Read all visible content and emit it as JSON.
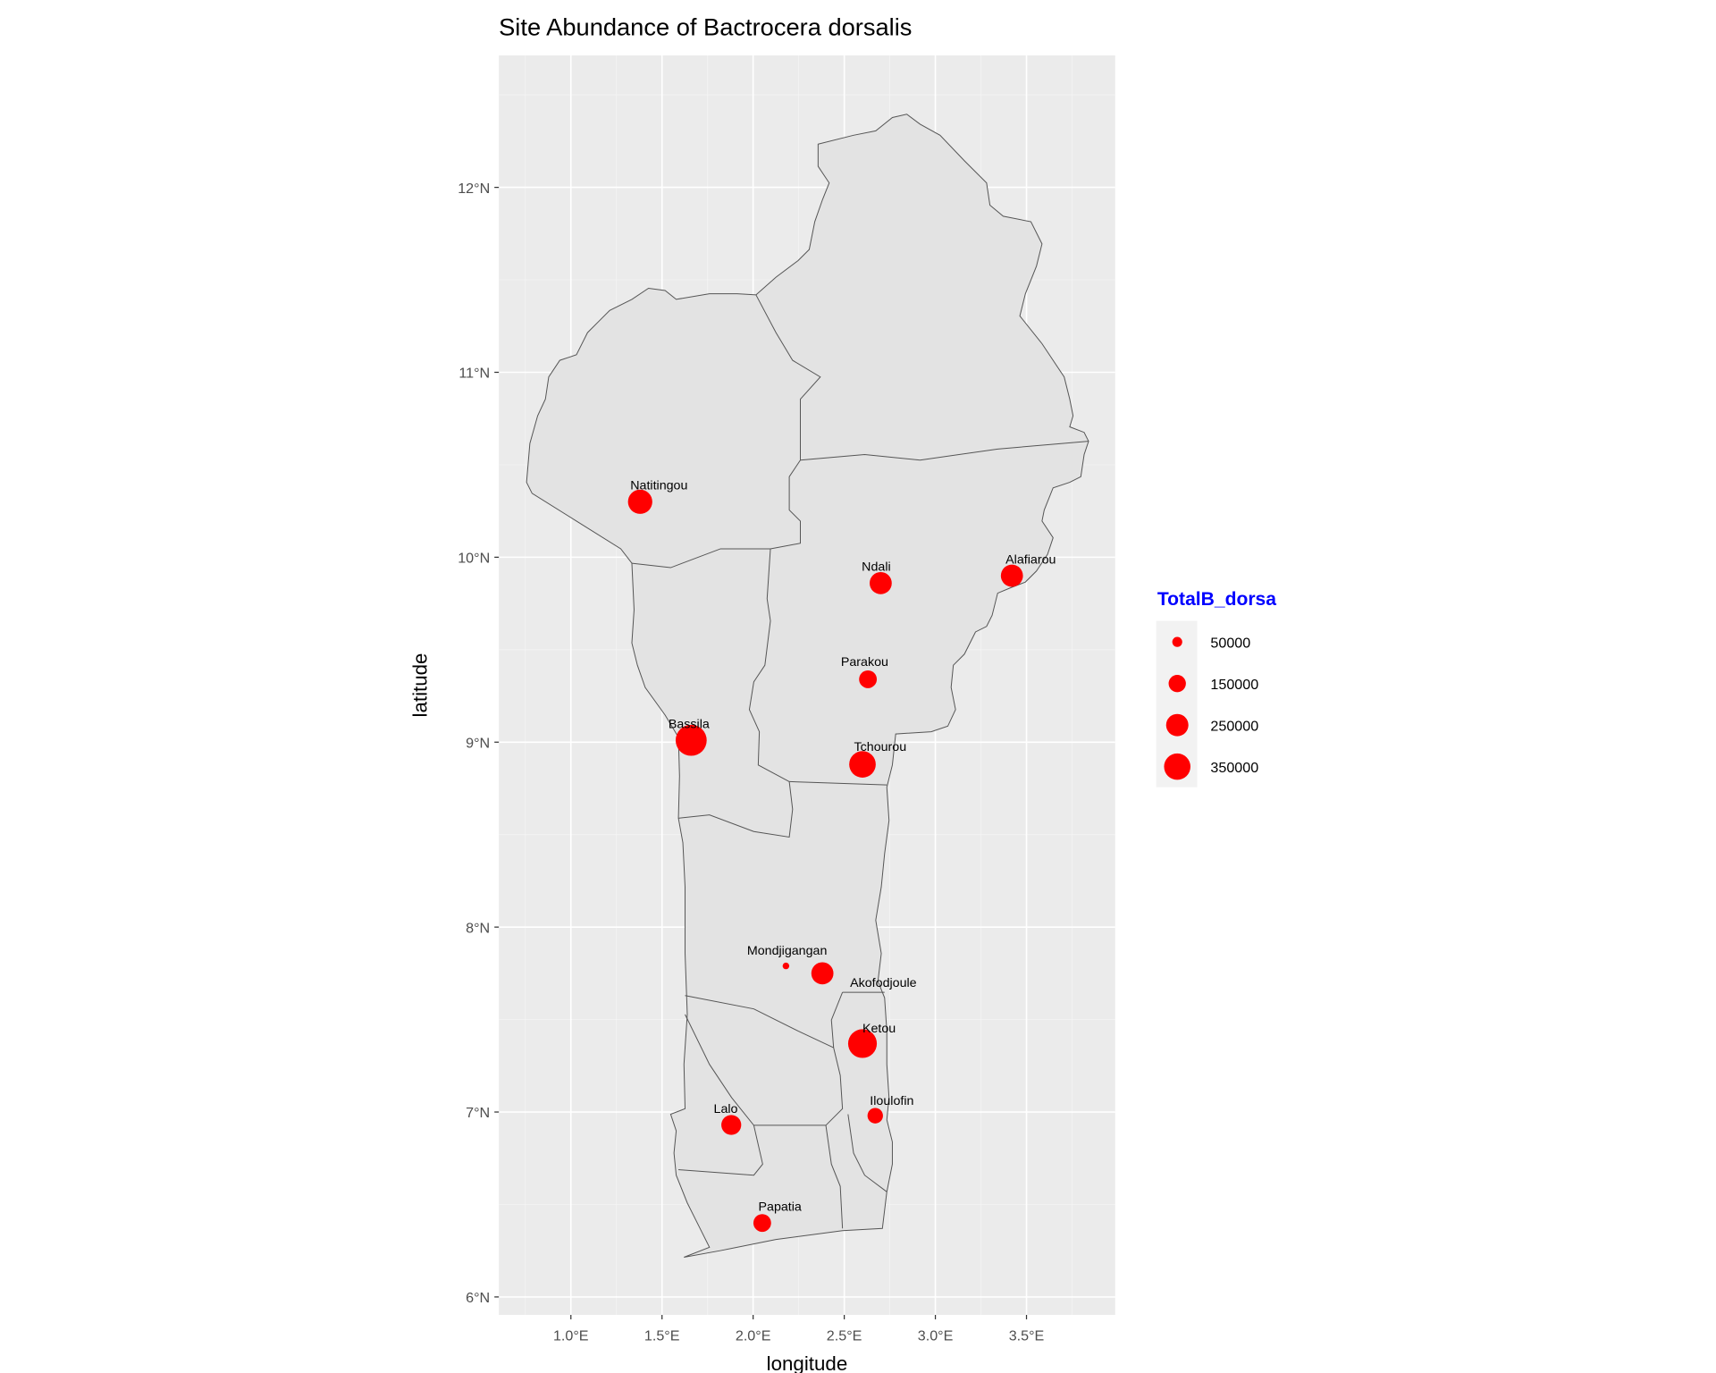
{
  "chart_data": {
    "type": "scatter",
    "title": "Site Abundance of Bactrocera dorsalis",
    "xlabel": "longitude",
    "ylabel": "latitude",
    "xlim": [
      0.6,
      3.99
    ],
    "ylim": [
      5.9,
      12.71
    ],
    "grid": true,
    "x_ticks": [
      1.0,
      1.5,
      2.0,
      2.5,
      3.0,
      3.5
    ],
    "x_tick_labels": [
      "1.0°E",
      "1.5°E",
      "2.0°E",
      "2.5°E",
      "3.0°E",
      "3.5°E"
    ],
    "y_ticks": [
      6,
      7,
      8,
      9,
      10,
      11,
      12
    ],
    "y_tick_labels": [
      "6°N",
      "7°N",
      "8°N",
      "9°N",
      "10°N",
      "11°N",
      "12°N"
    ],
    "point_color": "#ff0000",
    "legend": {
      "title": "TotalB_dorsa",
      "title_color": "#0000ff",
      "position": "right",
      "entries": [
        {
          "label": "50000",
          "value": 50000
        },
        {
          "label": "150000",
          "value": 150000
        },
        {
          "label": "250000",
          "value": 250000
        },
        {
          "label": "350000",
          "value": 350000
        }
      ]
    },
    "sites": [
      {
        "name": "Natitingou",
        "lon": 1.38,
        "lat": 10.3,
        "value": 215000
      },
      {
        "name": "Ndali",
        "lon": 2.7,
        "lat": 9.86,
        "value": 178000
      },
      {
        "name": "Alafiarou",
        "lon": 3.42,
        "lat": 9.9,
        "value": 178000
      },
      {
        "name": "Parakou",
        "lon": 2.63,
        "lat": 9.34,
        "value": 114000
      },
      {
        "name": "Bassila",
        "lon": 1.66,
        "lat": 9.01,
        "value": 350000
      },
      {
        "name": "Tchourou",
        "lon": 2.6,
        "lat": 8.88,
        "value": 256000
      },
      {
        "name": "Mondjigangan",
        "lon": 2.18,
        "lat": 7.79,
        "value": 16000
      },
      {
        "name": "Akofodjoule",
        "lon": 2.38,
        "lat": 7.75,
        "value": 178000
      },
      {
        "name": "Ketou",
        "lon": 2.6,
        "lat": 7.37,
        "value": 300000
      },
      {
        "name": "Iloulofin",
        "lon": 2.67,
        "lat": 6.98,
        "value": 87000
      },
      {
        "name": "Lalo",
        "lon": 1.88,
        "lat": 6.93,
        "value": 144000
      },
      {
        "name": "Papatia",
        "lon": 2.05,
        "lat": 6.4,
        "value": 114000
      }
    ]
  }
}
